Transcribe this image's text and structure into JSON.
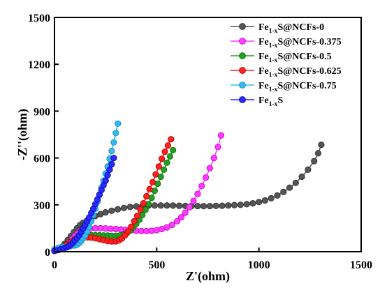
{
  "chart_data": {
    "type": "scatter",
    "title": "",
    "xlabel": "Z'(ohm)",
    "ylabel": "-Z''(ohm)",
    "xlim": [
      0,
      1500
    ],
    "ylim": [
      0,
      1500
    ],
    "xticks": [
      "0",
      "500",
      "1000",
      "1500"
    ],
    "yticks": [
      "0",
      "300",
      "600",
      "900",
      "1200",
      "1500"
    ],
    "grid": false,
    "legend_position": "top-right",
    "series": [
      {
        "name": "Fe1-xS@NCFs-0",
        "name_parts": {
          "base": "Fe",
          "sub": "1-x",
          "rest": "S@NCFs-0"
        },
        "color": "#555555",
        "edge": "#2b2b2b",
        "x": [
          0,
          20,
          35,
          50,
          65,
          80,
          95,
          110,
          125,
          140,
          160,
          180,
          200,
          225,
          250,
          280,
          310,
          340,
          370,
          400,
          430,
          460,
          490,
          520,
          550,
          580,
          610,
          640,
          670,
          700,
          730,
          760,
          790,
          820,
          850,
          880,
          910,
          940,
          970,
          1000,
          1030,
          1060,
          1090,
          1120,
          1150,
          1180,
          1210,
          1240,
          1270,
          1290,
          1305
        ],
        "y": [
          5,
          15,
          30,
          50,
          75,
          100,
          125,
          150,
          170,
          185,
          200,
          215,
          228,
          240,
          252,
          262,
          272,
          280,
          286,
          290,
          293,
          295,
          296,
          296,
          296,
          295,
          294,
          293,
          292,
          292,
          292,
          292,
          293,
          294,
          296,
          298,
          300,
          304,
          310,
          318,
          328,
          342,
          360,
          382,
          410,
          440,
          480,
          525,
          580,
          630,
          685
        ]
      },
      {
        "name": "Fe1-xS@NCFs-0.375",
        "name_parts": {
          "base": "Fe",
          "sub": "1-x",
          "rest": "S@NCFs-0.375"
        },
        "color": "#ff3cff",
        "edge": "#c000c0",
        "x": [
          0,
          20,
          40,
          55,
          70,
          85,
          100,
          115,
          130,
          150,
          175,
          200,
          225,
          250,
          275,
          300,
          325,
          350,
          375,
          400,
          425,
          450,
          475,
          500,
          525,
          550,
          575,
          600,
          620,
          640,
          660,
          680,
          700,
          720,
          740,
          760,
          780,
          800,
          815
        ],
        "y": [
          5,
          12,
          25,
          40,
          60,
          80,
          100,
          118,
          132,
          142,
          148,
          150,
          150,
          149,
          147,
          145,
          143,
          140,
          137,
          134,
          132,
          132,
          134,
          138,
          145,
          156,
          172,
          195,
          220,
          250,
          285,
          325,
          370,
          420,
          475,
          535,
          600,
          670,
          745
        ]
      },
      {
        "name": "Fe1-xS@NCFs-0.5",
        "name_parts": {
          "base": "Fe",
          "sub": "1-x",
          "rest": "S@NCFs-0.5"
        },
        "color": "#22a022",
        "edge": "#0e6e0e",
        "x": [
          0,
          20,
          40,
          60,
          80,
          100,
          120,
          140,
          160,
          180,
          200,
          220,
          240,
          260,
          280,
          300,
          320,
          340,
          355,
          370,
          385,
          400,
          415,
          430,
          445,
          460,
          475,
          490,
          505,
          520,
          535,
          550,
          565,
          580
        ],
        "y": [
          8,
          18,
          32,
          48,
          65,
          80,
          92,
          100,
          104,
          106,
          106,
          105,
          104,
          103,
          102,
          102,
          104,
          110,
          120,
          135,
          155,
          178,
          205,
          235,
          268,
          305,
          345,
          390,
          435,
          480,
          525,
          570,
          610,
          650
        ]
      },
      {
        "name": "Fe1-xS@NCFs-0.625",
        "name_parts": {
          "base": "Fe",
          "sub": "1-x",
          "rest": "S@NCFs-0.625"
        },
        "color": "#ff2020",
        "edge": "#b00000",
        "x": [
          0,
          20,
          40,
          60,
          80,
          100,
          120,
          140,
          160,
          180,
          200,
          220,
          240,
          260,
          280,
          300,
          315,
          330,
          345,
          360,
          375,
          390,
          405,
          420,
          435,
          450,
          465,
          480,
          495,
          510,
          525,
          540,
          555,
          570
        ],
        "y": [
          5,
          15,
          28,
          45,
          62,
          78,
          88,
          92,
          92,
          90,
          86,
          80,
          74,
          68,
          65,
          66,
          72,
          85,
          105,
          130,
          160,
          195,
          230,
          270,
          310,
          355,
          400,
          445,
          495,
          545,
          595,
          640,
          680,
          720
        ]
      },
      {
        "name": "Fe1-xS@NCFs-0.75",
        "name_parts": {
          "base": "Fe",
          "sub": "1-x",
          "rest": "S@NCFs-0.75"
        },
        "color": "#38b8f0",
        "edge": "#1688c4",
        "x": [
          0,
          20,
          40,
          60,
          80,
          100,
          110,
          120,
          130,
          140,
          150,
          160,
          170,
          180,
          190,
          200,
          210,
          220,
          230,
          240,
          250,
          260,
          270,
          280,
          290,
          300,
          310
        ],
        "y": [
          15,
          25,
          30,
          32,
          36,
          40,
          45,
          55,
          68,
          85,
          105,
          130,
          160,
          195,
          235,
          275,
          320,
          365,
          410,
          455,
          500,
          545,
          595,
          645,
          700,
          760,
          820
        ]
      },
      {
        "name": "Fe1-xS",
        "name_parts": {
          "base": "Fe",
          "sub": "1-x",
          "rest": "S"
        },
        "color": "#2a2aff",
        "edge": "#0000a0",
        "x": [
          0,
          15,
          30,
          45,
          60,
          70,
          80,
          90,
          100,
          110,
          120,
          130,
          140,
          150,
          160,
          170,
          180,
          190,
          200,
          210,
          220,
          230,
          240,
          250,
          260,
          270,
          280,
          290
        ],
        "y": [
          5,
          10,
          15,
          20,
          28,
          35,
          45,
          58,
          72,
          88,
          105,
          125,
          148,
          170,
          195,
          220,
          248,
          275,
          305,
          335,
          365,
          395,
          425,
          455,
          490,
          525,
          560,
          600
        ]
      }
    ]
  }
}
